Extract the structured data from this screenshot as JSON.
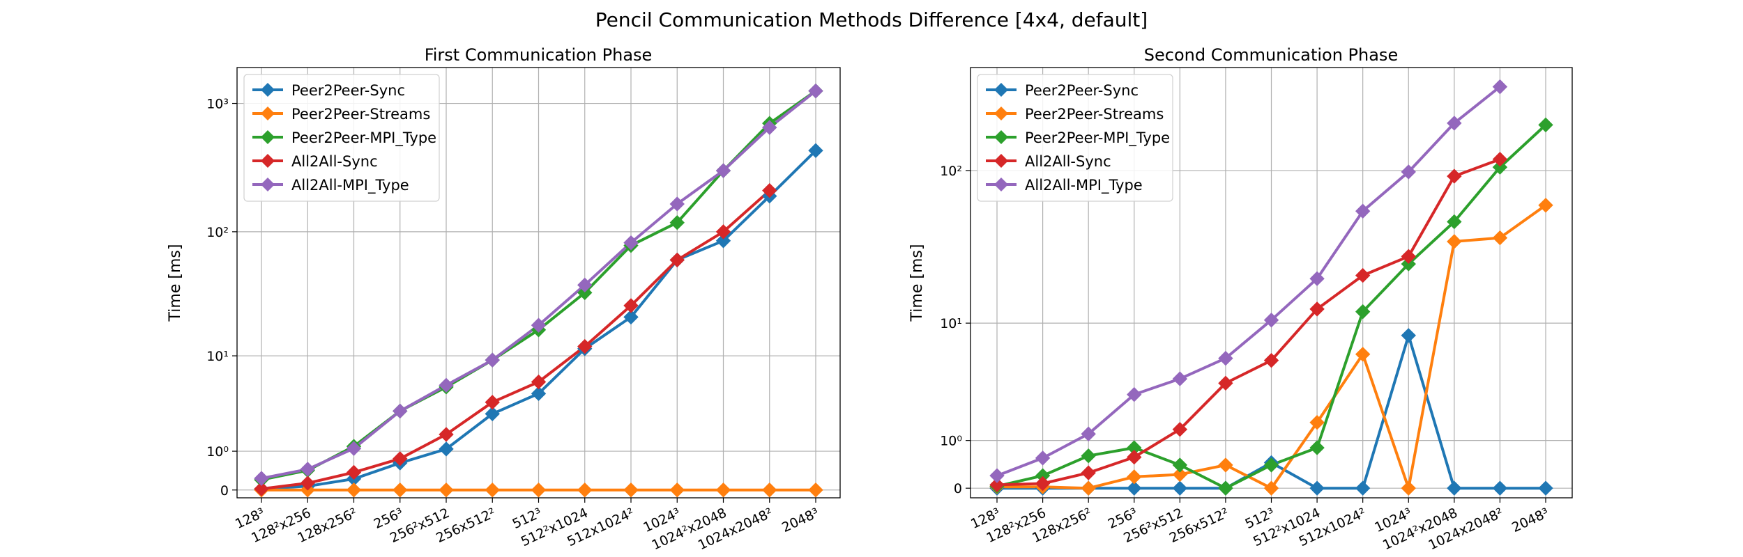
{
  "figure": {
    "title": "Pencil Communication Methods Difference [4x4, default]"
  },
  "colors": {
    "Peer2Peer-Sync": "#1f77b4",
    "Peer2Peer-Streams": "#ff7f0e",
    "Peer2Peer-MPI_Type": "#2ca02c",
    "All2All-Sync": "#d62728",
    "All2All-MPI_Type": "#9467bd"
  },
  "chart_data": [
    {
      "type": "line",
      "title": "First Communication Phase",
      "xlabel": "",
      "ylabel": "Time [ms]",
      "yscale": "symlog",
      "categories": [
        "128³",
        "128²x256",
        "128x256²",
        "256³",
        "256²x512",
        "256x512²",
        "512³",
        "512²x1024",
        "512x1024²",
        "1024³",
        "1024²x2048",
        "1024x2048²",
        "2048³"
      ],
      "yticks": [
        {
          "value": 0,
          "label": "0"
        },
        {
          "value": 1,
          "label": "10⁰"
        },
        {
          "value": 10,
          "label": "10¹"
        },
        {
          "value": 100,
          "label": "10²"
        },
        {
          "value": 1000,
          "label": "10³"
        }
      ],
      "ylim": [
        -0.15,
        1900
      ],
      "grid": true,
      "legend_position": "top-left",
      "series": [
        {
          "name": "Peer2Peer-Sync",
          "values": [
            0.02,
            0.07,
            0.22,
            0.62,
            1.08,
            2.9,
            4.6,
            11.5,
            21,
            60,
            85,
            190,
            430
          ]
        },
        {
          "name": "Peer2Peer-Streams",
          "values": [
            0,
            0,
            0,
            0,
            0,
            0,
            0,
            0,
            0,
            0,
            0,
            0,
            0
          ]
        },
        {
          "name": "Peer2Peer-MPI_Type",
          "values": [
            0.2,
            0.42,
            1.18,
            3.1,
            5.3,
            9.2,
            16.5,
            33,
            78,
            118,
            300,
            700,
            1250
          ]
        },
        {
          "name": "All2All-Sync",
          "values": [
            0.02,
            0.13,
            0.37,
            0.75,
            1.7,
            3.8,
            5.9,
            12,
            26,
            60,
            100,
            210,
            null
          ]
        },
        {
          "name": "All2All-MPI_Type",
          "values": [
            0.23,
            0.45,
            1.1,
            3.1,
            5.5,
            9.2,
            18,
            38,
            82,
            165,
            300,
            650,
            1250
          ]
        }
      ]
    },
    {
      "type": "line",
      "title": "Second Communication Phase",
      "xlabel": "",
      "ylabel": "Time [ms]",
      "yscale": "symlog",
      "categories": [
        "128³",
        "128²x256",
        "128x256²",
        "256³",
        "256²x512",
        "256x512²",
        "512³",
        "512²x1024",
        "512x1024²",
        "1024³",
        "1024²x2048",
        "1024x2048²",
        "2048³"
      ],
      "yticks": [
        {
          "value": 0,
          "label": "0"
        },
        {
          "value": 1,
          "label": "10⁰"
        },
        {
          "value": 10,
          "label": "10¹"
        },
        {
          "value": 100,
          "label": "10²"
        }
      ],
      "ylim": [
        -0.15,
        450
      ],
      "grid": true,
      "legend_position": "top-left",
      "series": [
        {
          "name": "Peer2Peer-Sync",
          "values": [
            0,
            0,
            0,
            0,
            0,
            0,
            0.45,
            0,
            0,
            8.2,
            0,
            0,
            0
          ]
        },
        {
          "name": "Peer2Peer-Streams",
          "values": [
            0.02,
            0.02,
            0,
            0.18,
            0.22,
            0.4,
            0,
            1.6,
            6,
            0,
            35,
            37,
            60
          ]
        },
        {
          "name": "Peer2Peer-MPI_Type",
          "values": [
            0.03,
            0.2,
            0.6,
            0.8,
            0.4,
            0,
            0.4,
            0.8,
            12,
            25,
            47,
            105,
            195
          ]
        },
        {
          "name": "All2All-Sync",
          "values": [
            0.05,
            0.07,
            0.25,
            0.57,
            1.35,
            3.6,
            5.4,
            12.5,
            21,
            28,
            92,
            118,
            null
          ]
        },
        {
          "name": "All2All-MPI_Type",
          "values": [
            0.2,
            0.55,
            1.2,
            2.9,
            3.9,
            5.6,
            10.5,
            20,
            55,
            98,
            200,
            340,
            null
          ]
        }
      ]
    }
  ]
}
